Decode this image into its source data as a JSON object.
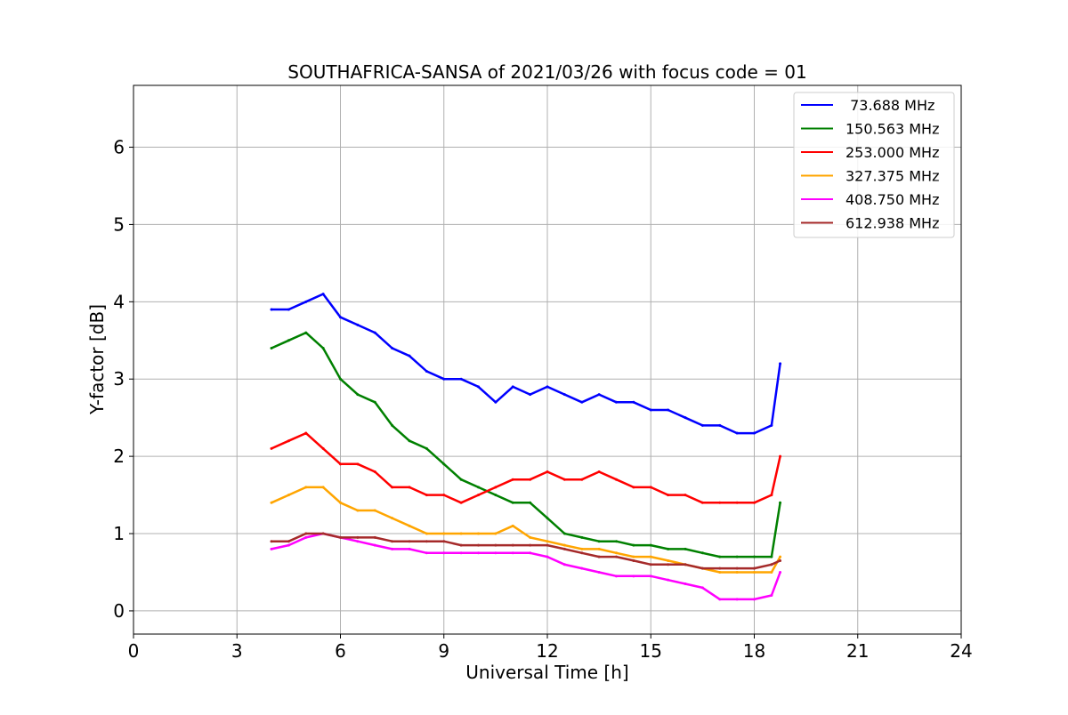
{
  "chart_data": {
    "type": "line",
    "title": "SOUTHAFRICA-SANSA of 2021/03/26 with focus code = 01",
    "xlabel": "Universal Time [h]",
    "ylabel": "Y-factor [dB]",
    "xlim": [
      0,
      24
    ],
    "ylim": [
      -0.3,
      6.8
    ],
    "xticks": [
      0,
      3,
      6,
      9,
      12,
      15,
      18,
      21,
      24
    ],
    "yticks": [
      0,
      1,
      2,
      3,
      4,
      5,
      6
    ],
    "grid": true,
    "legend_position": "top-right",
    "series": [
      {
        "name": " 73.688 MHz",
        "color": "#0000ff",
        "x": [
          4.0,
          4.5,
          5.0,
          5.5,
          6.0,
          6.5,
          7.0,
          7.5,
          8.0,
          8.5,
          9.0,
          9.5,
          10.0,
          10.5,
          11.0,
          11.5,
          12.0,
          12.5,
          13.0,
          13.5,
          14.0,
          14.5,
          15.0,
          15.5,
          16.0,
          16.5,
          17.0,
          17.5,
          18.0,
          18.5,
          18.75
        ],
        "values": [
          3.9,
          3.9,
          4.0,
          4.1,
          3.8,
          3.7,
          3.6,
          3.4,
          3.3,
          3.1,
          3.0,
          3.0,
          2.9,
          2.7,
          2.9,
          2.8,
          2.9,
          2.8,
          2.7,
          2.8,
          2.7,
          2.7,
          2.6,
          2.6,
          2.5,
          2.4,
          2.4,
          2.3,
          2.3,
          2.4,
          3.2
        ]
      },
      {
        "name": "150.563 MHz",
        "color": "#008000",
        "x": [
          4.0,
          4.5,
          5.0,
          5.5,
          6.0,
          6.5,
          7.0,
          7.5,
          8.0,
          8.5,
          9.0,
          9.5,
          10.0,
          10.5,
          11.0,
          11.5,
          12.0,
          12.5,
          13.0,
          13.5,
          14.0,
          14.5,
          15.0,
          15.5,
          16.0,
          16.5,
          17.0,
          17.5,
          18.0,
          18.5,
          18.75
        ],
        "values": [
          3.4,
          3.5,
          3.6,
          3.4,
          3.0,
          2.8,
          2.7,
          2.4,
          2.2,
          2.1,
          1.9,
          1.7,
          1.6,
          1.5,
          1.4,
          1.4,
          1.2,
          1.0,
          0.95,
          0.9,
          0.9,
          0.85,
          0.85,
          0.8,
          0.8,
          0.75,
          0.7,
          0.7,
          0.7,
          0.7,
          1.4
        ]
      },
      {
        "name": "253.000 MHz",
        "color": "#ff0000",
        "x": [
          4.0,
          4.5,
          5.0,
          5.5,
          6.0,
          6.5,
          7.0,
          7.5,
          8.0,
          8.5,
          9.0,
          9.5,
          10.0,
          10.5,
          11.0,
          11.5,
          12.0,
          12.5,
          13.0,
          13.5,
          14.0,
          14.5,
          15.0,
          15.5,
          16.0,
          16.5,
          17.0,
          17.5,
          18.0,
          18.5,
          18.75
        ],
        "values": [
          2.1,
          2.2,
          2.3,
          2.1,
          1.9,
          1.9,
          1.8,
          1.6,
          1.6,
          1.5,
          1.5,
          1.4,
          1.5,
          1.6,
          1.7,
          1.7,
          1.8,
          1.7,
          1.7,
          1.8,
          1.7,
          1.6,
          1.6,
          1.5,
          1.5,
          1.4,
          1.4,
          1.4,
          1.4,
          1.5,
          2.0
        ]
      },
      {
        "name": "327.375 MHz",
        "color": "#ffa500",
        "x": [
          4.0,
          4.5,
          5.0,
          5.5,
          6.0,
          6.5,
          7.0,
          7.5,
          8.0,
          8.5,
          9.0,
          9.5,
          10.0,
          10.5,
          11.0,
          11.5,
          12.0,
          12.5,
          13.0,
          13.5,
          14.0,
          14.5,
          15.0,
          15.5,
          16.0,
          16.5,
          17.0,
          17.5,
          18.0,
          18.5,
          18.75
        ],
        "values": [
          1.4,
          1.5,
          1.6,
          1.6,
          1.4,
          1.3,
          1.3,
          1.2,
          1.1,
          1.0,
          1.0,
          1.0,
          1.0,
          1.0,
          1.1,
          0.95,
          0.9,
          0.85,
          0.8,
          0.8,
          0.75,
          0.7,
          0.7,
          0.65,
          0.6,
          0.55,
          0.5,
          0.5,
          0.5,
          0.5,
          0.7
        ]
      },
      {
        "name": "408.750 MHz",
        "color": "#ff00ff",
        "x": [
          4.0,
          4.5,
          5.0,
          5.5,
          6.0,
          6.5,
          7.0,
          7.5,
          8.0,
          8.5,
          9.0,
          9.5,
          10.0,
          10.5,
          11.0,
          11.5,
          12.0,
          12.5,
          13.0,
          13.5,
          14.0,
          14.5,
          15.0,
          15.5,
          16.0,
          16.5,
          17.0,
          17.5,
          18.0,
          18.5,
          18.75
        ],
        "values": [
          0.8,
          0.85,
          0.95,
          1.0,
          0.95,
          0.9,
          0.85,
          0.8,
          0.8,
          0.75,
          0.75,
          0.75,
          0.75,
          0.75,
          0.75,
          0.75,
          0.7,
          0.6,
          0.55,
          0.5,
          0.45,
          0.45,
          0.45,
          0.4,
          0.35,
          0.3,
          0.15,
          0.15,
          0.15,
          0.2,
          0.5
        ]
      },
      {
        "name": "612.938 MHz",
        "color": "#a52a2a",
        "x": [
          4.0,
          4.5,
          5.0,
          5.5,
          6.0,
          6.5,
          7.0,
          7.5,
          8.0,
          8.5,
          9.0,
          9.5,
          10.0,
          10.5,
          11.0,
          11.5,
          12.0,
          12.5,
          13.0,
          13.5,
          14.0,
          14.5,
          15.0,
          15.5,
          16.0,
          16.5,
          17.0,
          17.5,
          18.0,
          18.5,
          18.75
        ],
        "values": [
          0.9,
          0.9,
          1.0,
          1.0,
          0.95,
          0.95,
          0.95,
          0.9,
          0.9,
          0.9,
          0.9,
          0.85,
          0.85,
          0.85,
          0.85,
          0.85,
          0.85,
          0.8,
          0.75,
          0.7,
          0.7,
          0.65,
          0.6,
          0.6,
          0.6,
          0.55,
          0.55,
          0.55,
          0.55,
          0.6,
          0.65
        ]
      }
    ]
  }
}
